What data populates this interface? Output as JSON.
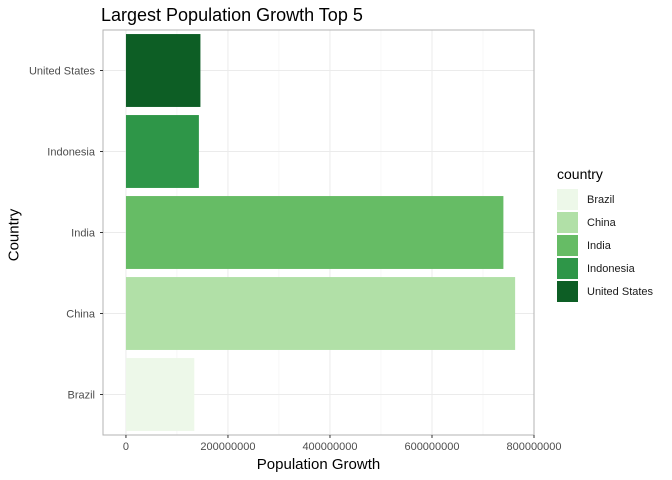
{
  "chart_data": {
    "type": "bar",
    "orientation": "horizontal",
    "title": "Largest Population Growth Top 5",
    "xlabel": "Population Growth",
    "ylabel": "Country",
    "categories": [
      "Brazil",
      "China",
      "India",
      "Indonesia",
      "United States"
    ],
    "values": [
      134000000,
      763000000,
      740000000,
      143000000,
      146000000
    ],
    "colors": [
      "#edf8e9",
      "#b1e0a7",
      "#66bc65",
      "#2e9648",
      "#0d5e25"
    ],
    "xlim": [
      -45000000,
      800000000
    ],
    "xticks": [
      0,
      200000000,
      400000000,
      600000000,
      800000000
    ],
    "xtick_labels": [
      "0",
      "200000000",
      "400000000",
      "600000000",
      "800000000"
    ],
    "grid": true,
    "legend": {
      "title": "country",
      "position": "right",
      "entries": [
        "Brazil",
        "China",
        "India",
        "Indonesia",
        "United States"
      ]
    }
  }
}
